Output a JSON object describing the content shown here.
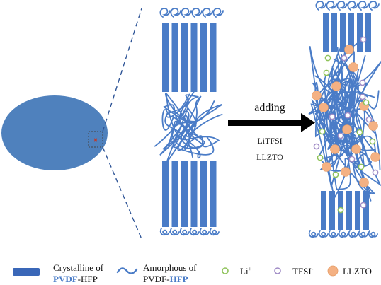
{
  "arrow": {
    "top_label": "adding",
    "bottom_labels": [
      "LiTFSI",
      "LLZTO"
    ]
  },
  "legend": {
    "crystalline": {
      "line1": "Crystalline of",
      "bold": "PVDF",
      "rest": "-HFP"
    },
    "amorphous": {
      "line1": "Amorphous of",
      "pre": "PVDF-",
      "bold": "HFP"
    },
    "li": {
      "text": "Li",
      "sup": "+"
    },
    "tfsi": {
      "text": "TFSI",
      "sup": "-"
    },
    "llzto": {
      "text": "LLZTO"
    }
  },
  "colors": {
    "polymer_blue": "#4a7cc7",
    "ellipse_blue": "#4f81bd",
    "legend_bold_blue": "#4a7cc7",
    "li_green": "#8fc35a",
    "tfsi_purple": "#a08cc6",
    "llzto_orange": "#f4b183",
    "dash_gray": "#2f5597"
  }
}
